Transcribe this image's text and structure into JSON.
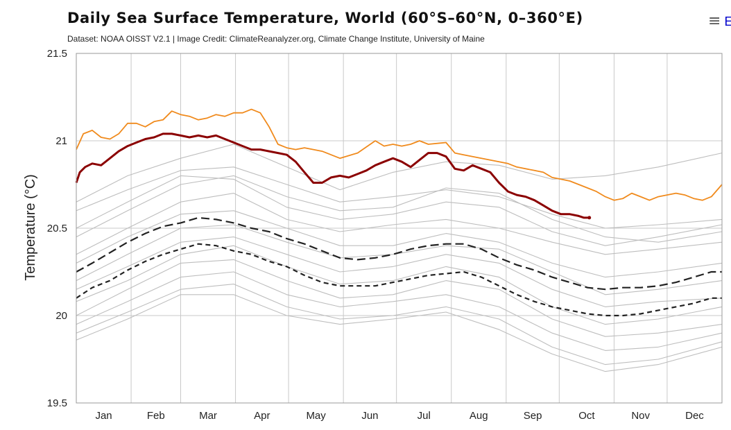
{
  "header": {
    "title": "Daily Sea Surface Temperature, World (60°S–60°N, 0–360°E)",
    "subtitle": "Dataset: NOAA OISST V2.1 | Image Credit: ClimateReanalyzer.org, Climate Change Institute, University of Maine",
    "menu_icon": "hamburger-menu-icon",
    "menu_label": "E"
  },
  "colors": {
    "history": "#bdbdbd",
    "series_orange": "#f08a1c",
    "series_red": "#8b0000",
    "mean_line": "#222222",
    "grid": "#c8c8c8"
  },
  "chart_data": {
    "type": "line",
    "title": "Daily Sea Surface Temperature, World (60°S–60°N, 0–360°E)",
    "xlabel": "",
    "ylabel": "Temperature (°C)",
    "ylim": [
      19.5,
      21.5
    ],
    "yticks": [
      "19.5",
      "20",
      "20.5",
      "21",
      "21.5"
    ],
    "xlim": [
      1,
      366
    ],
    "xticks": [
      "Jan",
      "Feb",
      "Mar",
      "Apr",
      "May",
      "Jun",
      "Jul",
      "Aug",
      "Sep",
      "Oct",
      "Nov",
      "Dec"
    ],
    "grid": true,
    "legend": "none",
    "series": [
      {
        "style": "solid",
        "color": "#f08a1c",
        "x": [
          1,
          5,
          10,
          15,
          20,
          25,
          30,
          35,
          40,
          45,
          50,
          55,
          60,
          65,
          70,
          75,
          80,
          85,
          90,
          95,
          100,
          105,
          110,
          115,
          120,
          125,
          130,
          140,
          150,
          160,
          170,
          175,
          180,
          185,
          190,
          195,
          200,
          210,
          215,
          220,
          230,
          240,
          245,
          250,
          260,
          265,
          270,
          275,
          280,
          285,
          290,
          295,
          300,
          305,
          310,
          315,
          320,
          325,
          330,
          335,
          340,
          345,
          350,
          355,
          360,
          366
        ],
        "y": [
          20.95,
          21.04,
          21.06,
          21.02,
          21.01,
          21.04,
          21.1,
          21.1,
          21.08,
          21.11,
          21.12,
          21.17,
          21.15,
          21.14,
          21.12,
          21.13,
          21.15,
          21.14,
          21.16,
          21.16,
          21.18,
          21.16,
          21.08,
          20.98,
          20.96,
          20.95,
          20.96,
          20.94,
          20.9,
          20.93,
          21.0,
          20.97,
          20.98,
          20.97,
          20.98,
          21.0,
          20.98,
          20.99,
          20.93,
          20.92,
          20.9,
          20.88,
          20.87,
          20.85,
          20.83,
          20.82,
          20.79,
          20.78,
          20.77,
          20.75,
          20.73,
          20.71,
          20.68,
          20.66,
          20.67,
          20.7,
          20.68,
          20.66,
          20.68,
          20.69,
          20.7,
          20.69,
          20.67,
          20.66,
          20.68,
          20.75
        ]
      },
      {
        "style": "solid-bold",
        "color": "#8b0000",
        "x": [
          1,
          3,
          6,
          10,
          15,
          20,
          25,
          30,
          35,
          40,
          45,
          50,
          55,
          60,
          65,
          70,
          75,
          80,
          85,
          90,
          95,
          100,
          105,
          110,
          115,
          120,
          125,
          130,
          135,
          140,
          145,
          150,
          155,
          160,
          165,
          170,
          175,
          180,
          185,
          190,
          195,
          200,
          205,
          210,
          215,
          220,
          225,
          230,
          235,
          240,
          245,
          250,
          255,
          260,
          265,
          270,
          275,
          280,
          285,
          288,
          291
        ],
        "y": [
          20.76,
          20.82,
          20.85,
          20.87,
          20.86,
          20.9,
          20.94,
          20.97,
          20.99,
          21.01,
          21.02,
          21.04,
          21.04,
          21.03,
          21.02,
          21.03,
          21.02,
          21.03,
          21.01,
          20.99,
          20.97,
          20.95,
          20.95,
          20.94,
          20.93,
          20.92,
          20.88,
          20.82,
          20.76,
          20.76,
          20.79,
          20.8,
          20.79,
          20.81,
          20.83,
          20.86,
          20.88,
          20.9,
          20.88,
          20.85,
          20.89,
          20.93,
          20.93,
          20.91,
          20.84,
          20.83,
          20.86,
          20.84,
          20.82,
          20.76,
          20.71,
          20.69,
          20.68,
          20.66,
          20.63,
          20.6,
          20.58,
          20.58,
          20.57,
          20.56,
          20.56
        ]
      },
      {
        "style": "long-dash",
        "color": "#222222",
        "x": [
          1,
          10,
          20,
          30,
          40,
          50,
          60,
          70,
          80,
          90,
          100,
          110,
          120,
          130,
          140,
          150,
          160,
          170,
          180,
          190,
          200,
          210,
          220,
          230,
          240,
          250,
          260,
          270,
          280,
          290,
          300,
          310,
          320,
          330,
          340,
          350,
          360,
          366
        ],
        "y": [
          20.25,
          20.3,
          20.36,
          20.42,
          20.47,
          20.51,
          20.53,
          20.56,
          20.55,
          20.53,
          20.5,
          20.48,
          20.44,
          20.41,
          20.37,
          20.33,
          20.32,
          20.33,
          20.35,
          20.38,
          20.4,
          20.41,
          20.41,
          20.38,
          20.33,
          20.29,
          20.26,
          20.22,
          20.19,
          20.16,
          20.15,
          20.16,
          20.16,
          20.17,
          20.19,
          20.22,
          20.25,
          20.25
        ]
      },
      {
        "style": "dash",
        "color": "#222222",
        "x": [
          1,
          10,
          20,
          30,
          40,
          50,
          60,
          70,
          80,
          90,
          100,
          110,
          120,
          130,
          140,
          150,
          160,
          170,
          180,
          190,
          200,
          210,
          220,
          230,
          240,
          250,
          260,
          270,
          280,
          290,
          300,
          310,
          320,
          330,
          340,
          350,
          360,
          366
        ],
        "y": [
          20.1,
          20.16,
          20.2,
          20.26,
          20.31,
          20.35,
          20.38,
          20.41,
          20.4,
          20.37,
          20.35,
          20.31,
          20.28,
          20.23,
          20.19,
          20.17,
          20.17,
          20.17,
          20.19,
          20.21,
          20.23,
          20.24,
          20.25,
          20.22,
          20.17,
          20.12,
          20.08,
          20.05,
          20.03,
          20.01,
          20.0,
          20.0,
          20.01,
          20.03,
          20.05,
          20.07,
          20.1,
          20.1
        ]
      },
      {
        "style": "history",
        "color": "#bdbdbd",
        "x": [
          1,
          30,
          60,
          90,
          120,
          150,
          180,
          210,
          240,
          270,
          300,
          330,
          366
        ],
        "y": [
          20.6,
          20.72,
          20.83,
          20.85,
          20.75,
          20.65,
          20.68,
          20.72,
          20.68,
          20.58,
          20.5,
          20.52,
          20.55
        ]
      },
      {
        "style": "history",
        "color": "#bdbdbd",
        "x": [
          1,
          30,
          60,
          90,
          120,
          150,
          180,
          210,
          240,
          270,
          300,
          330,
          366
        ],
        "y": [
          20.65,
          20.8,
          20.9,
          20.98,
          20.85,
          20.72,
          20.82,
          20.88,
          20.86,
          20.78,
          20.8,
          20.85,
          20.93
        ]
      },
      {
        "style": "history",
        "color": "#bdbdbd",
        "x": [
          1,
          30,
          60,
          90,
          120,
          150,
          180,
          210,
          240,
          270,
          300,
          330,
          366
        ],
        "y": [
          20.45,
          20.6,
          20.75,
          20.8,
          20.68,
          20.6,
          20.62,
          20.73,
          20.7,
          20.55,
          20.45,
          20.42,
          20.48
        ]
      },
      {
        "style": "history",
        "color": "#bdbdbd",
        "x": [
          1,
          30,
          60,
          90,
          120,
          150,
          180,
          210,
          240,
          270,
          300,
          330,
          366
        ],
        "y": [
          20.35,
          20.5,
          20.65,
          20.7,
          20.55,
          20.48,
          20.52,
          20.55,
          20.5,
          20.42,
          20.35,
          20.38,
          20.42
        ]
      },
      {
        "style": "history",
        "color": "#bdbdbd",
        "x": [
          1,
          30,
          60,
          90,
          120,
          150,
          180,
          210,
          240,
          270,
          300,
          330,
          366
        ],
        "y": [
          20.3,
          20.45,
          20.58,
          20.6,
          20.5,
          20.4,
          20.4,
          20.47,
          20.42,
          20.3,
          20.22,
          20.25,
          20.3
        ]
      },
      {
        "style": "history",
        "color": "#bdbdbd",
        "x": [
          1,
          30,
          60,
          90,
          120,
          150,
          180,
          210,
          240,
          270,
          300,
          330,
          366
        ],
        "y": [
          20.2,
          20.35,
          20.5,
          20.52,
          20.42,
          20.33,
          20.35,
          20.4,
          20.38,
          20.25,
          20.12,
          20.15,
          20.2
        ]
      },
      {
        "style": "history",
        "color": "#bdbdbd",
        "x": [
          1,
          30,
          60,
          90,
          120,
          150,
          180,
          210,
          240,
          270,
          300,
          330,
          366
        ],
        "y": [
          20.15,
          20.28,
          20.42,
          20.45,
          20.35,
          20.25,
          20.28,
          20.35,
          20.3,
          20.15,
          20.05,
          20.08,
          20.1
        ]
      },
      {
        "style": "history",
        "color": "#bdbdbd",
        "x": [
          1,
          30,
          60,
          90,
          120,
          150,
          180,
          210,
          240,
          270,
          300,
          330,
          366
        ],
        "y": [
          20.08,
          20.2,
          20.35,
          20.4,
          20.28,
          20.18,
          20.2,
          20.28,
          20.22,
          20.05,
          19.95,
          19.98,
          20.05
        ]
      },
      {
        "style": "history",
        "color": "#bdbdbd",
        "x": [
          1,
          30,
          60,
          90,
          120,
          150,
          180,
          210,
          240,
          270,
          300,
          330,
          366
        ],
        "y": [
          20.0,
          20.15,
          20.3,
          20.32,
          20.2,
          20.1,
          20.12,
          20.2,
          20.15,
          19.98,
          19.88,
          19.9,
          19.95
        ]
      },
      {
        "style": "history",
        "color": "#bdbdbd",
        "x": [
          1,
          30,
          60,
          90,
          120,
          150,
          180,
          210,
          240,
          270,
          300,
          330,
          366
        ],
        "y": [
          19.95,
          20.08,
          20.22,
          20.25,
          20.12,
          20.05,
          20.08,
          20.12,
          20.05,
          19.9,
          19.8,
          19.82,
          19.9
        ]
      },
      {
        "style": "history",
        "color": "#bdbdbd",
        "x": [
          1,
          30,
          60,
          90,
          120,
          150,
          180,
          210,
          240,
          270,
          300,
          330,
          366
        ],
        "y": [
          19.9,
          20.02,
          20.15,
          20.18,
          20.05,
          19.98,
          20.0,
          20.05,
          19.98,
          19.82,
          19.72,
          19.75,
          19.85
        ]
      },
      {
        "style": "history",
        "color": "#bdbdbd",
        "x": [
          1,
          30,
          60,
          90,
          120,
          150,
          180,
          210,
          240,
          270,
          300,
          330,
          366
        ],
        "y": [
          19.86,
          19.98,
          20.12,
          20.12,
          20.0,
          19.95,
          19.98,
          20.02,
          19.92,
          19.78,
          19.68,
          19.72,
          19.82
        ]
      },
      {
        "style": "history",
        "color": "#bdbdbd",
        "x": [
          1,
          30,
          60,
          90,
          120,
          150,
          180,
          210,
          240,
          270,
          300,
          330,
          366
        ],
        "y": [
          20.5,
          20.65,
          20.8,
          20.78,
          20.62,
          20.55,
          20.58,
          20.65,
          20.62,
          20.48,
          20.4,
          20.45,
          20.52
        ]
      }
    ]
  }
}
